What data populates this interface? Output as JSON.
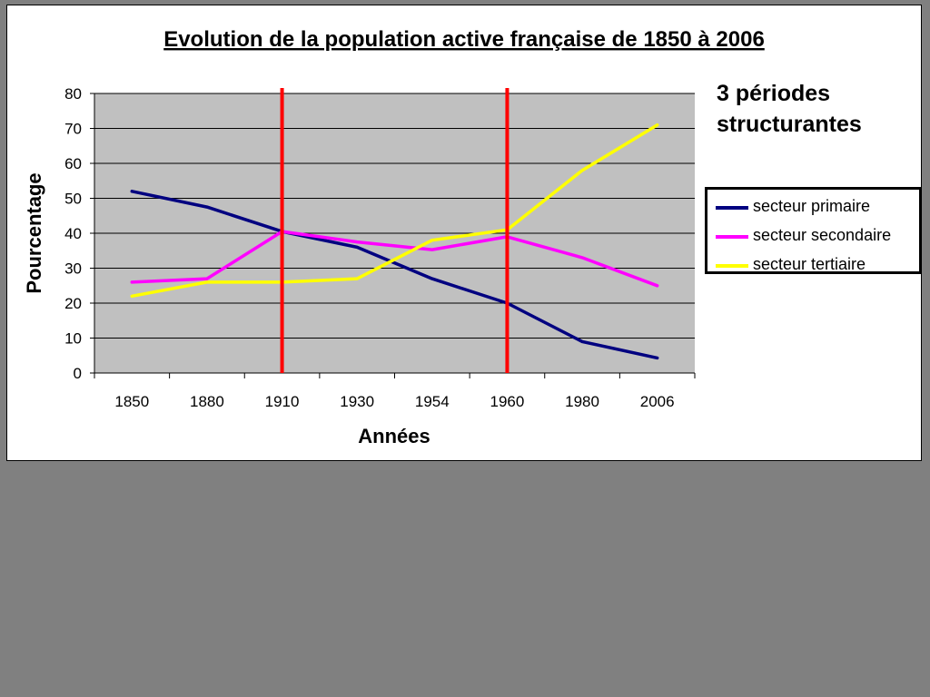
{
  "chart_data": {
    "type": "line",
    "title": "Evolution de la population active française de 1850 à 2006",
    "xlabel": "Années",
    "ylabel": "Pourcentage",
    "categories": [
      "1850",
      "1880",
      "1910",
      "1930",
      "1954",
      "1960",
      "1980",
      "2006"
    ],
    "ylim": [
      0,
      80
    ],
    "yticks": [
      0,
      10,
      20,
      30,
      40,
      50,
      60,
      70,
      80
    ],
    "grid": "horizontal",
    "plot_background": "#c0c0c0",
    "legend_position": "right",
    "series": [
      {
        "name": "secteur primaire",
        "color": "#000080",
        "values": [
          52,
          47.5,
          40.5,
          36,
          27,
          20,
          9,
          4.3
        ]
      },
      {
        "name": "secteur secondaire",
        "color": "#ff00ff",
        "values": [
          26,
          27,
          40.5,
          37.5,
          35.3,
          39,
          33,
          25
        ]
      },
      {
        "name": "secteur tertiaire",
        "color": "#ffff00",
        "values": [
          22,
          26,
          26,
          27,
          38,
          41,
          58,
          71
        ]
      }
    ],
    "markers": [
      {
        "category": "1910",
        "color": "#ff0000"
      },
      {
        "category": "1960",
        "color": "#ff0000"
      }
    ],
    "annotation": "3 périodes\nstructurantes"
  }
}
